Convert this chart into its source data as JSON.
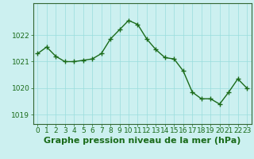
{
  "x": [
    0,
    1,
    2,
    3,
    4,
    5,
    6,
    7,
    8,
    9,
    10,
    11,
    12,
    13,
    14,
    15,
    16,
    17,
    18,
    19,
    20,
    21,
    22,
    23
  ],
  "y": [
    1021.3,
    1021.55,
    1021.2,
    1021.0,
    1021.0,
    1021.05,
    1021.1,
    1021.3,
    1021.85,
    1022.2,
    1022.55,
    1022.4,
    1021.85,
    1021.45,
    1021.15,
    1021.1,
    1020.65,
    1019.85,
    1019.6,
    1019.6,
    1019.4,
    1019.85,
    1020.35,
    1020.0
  ],
  "line_color": "#1a6b1a",
  "marker": "+",
  "marker_size": 4,
  "marker_linewidth": 1.0,
  "background_color": "#ccf0f0",
  "grid_color": "#99dddd",
  "xlabel": "Graphe pression niveau de la mer (hPa)",
  "xlabel_fontsize": 8,
  "ylabel_ticks": [
    1019,
    1020,
    1021,
    1022
  ],
  "xlim": [
    -0.5,
    23.5
  ],
  "ylim": [
    1018.65,
    1023.2
  ],
  "tick_fontsize": 6.5,
  "tick_color": "#1a6b1a",
  "border_color": "#336633",
  "linewidth": 1.0
}
